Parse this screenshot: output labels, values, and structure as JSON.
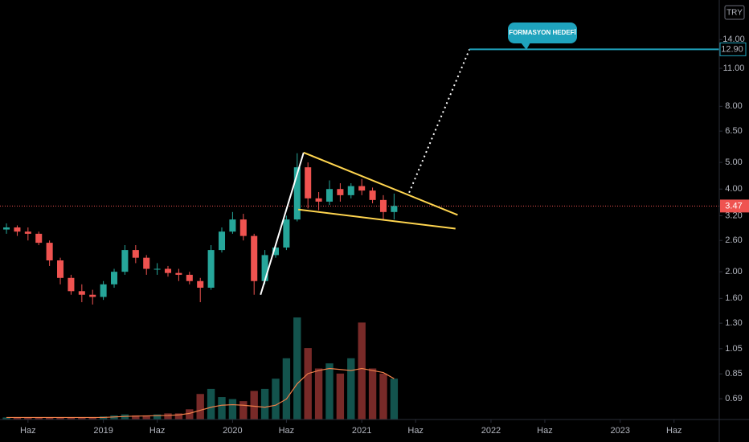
{
  "chart_data": {
    "type": "candlestick",
    "currency": "TRY",
    "categories": [
      null,
      null,
      null,
      null,
      null,
      null,
      null,
      null,
      null,
      null,
      null,
      null,
      null,
      null,
      null,
      null,
      null,
      null,
      null,
      null,
      null,
      null,
      null,
      null,
      null,
      null,
      null,
      null,
      null,
      null,
      null,
      null,
      null,
      null,
      null,
      null,
      null
    ],
    "open": [
      2.85,
      2.9,
      2.8,
      2.75,
      2.55,
      2.2,
      1.9,
      1.7,
      1.65,
      1.62,
      1.8,
      2.0,
      2.4,
      2.25,
      2.05,
      2.05,
      1.98,
      1.95,
      1.85,
      1.75,
      2.4,
      2.8,
      3.1,
      2.7,
      1.85,
      2.3,
      2.45,
      3.1,
      4.8,
      3.7,
      3.6,
      4.0,
      3.8,
      4.1,
      3.95,
      3.65,
      3.3
    ],
    "high": [
      3.0,
      2.95,
      2.9,
      2.8,
      2.6,
      2.25,
      1.95,
      1.8,
      1.72,
      1.85,
      2.05,
      2.5,
      2.5,
      2.3,
      2.15,
      2.1,
      2.05,
      2.0,
      1.9,
      2.5,
      2.9,
      3.3,
      3.25,
      2.75,
      2.4,
      2.55,
      3.2,
      5.4,
      5.0,
      3.9,
      4.3,
      4.2,
      4.2,
      4.35,
      4.05,
      3.8,
      3.85
    ],
    "low": [
      2.75,
      2.7,
      2.6,
      2.5,
      2.1,
      1.8,
      1.65,
      1.55,
      1.52,
      1.58,
      1.75,
      1.95,
      2.15,
      1.95,
      1.95,
      1.92,
      1.85,
      1.8,
      1.55,
      1.72,
      2.35,
      2.75,
      2.6,
      1.65,
      1.8,
      2.25,
      2.4,
      3.05,
      3.4,
      3.35,
      3.5,
      3.6,
      3.7,
      3.8,
      3.55,
      3.1,
      3.1
    ],
    "close": [
      2.9,
      2.8,
      2.75,
      2.55,
      2.2,
      1.9,
      1.7,
      1.65,
      1.62,
      1.8,
      2.0,
      2.4,
      2.25,
      2.05,
      2.05,
      1.98,
      1.95,
      1.85,
      1.75,
      2.4,
      2.8,
      3.1,
      2.7,
      1.85,
      2.3,
      2.45,
      3.1,
      4.8,
      3.7,
      3.6,
      4.0,
      3.8,
      4.1,
      3.95,
      3.65,
      3.3,
      3.47
    ],
    "volume": [
      2,
      2,
      2,
      2,
      2,
      2,
      2,
      2,
      2,
      3,
      4,
      5,
      4,
      4,
      5,
      6,
      6,
      10,
      25,
      30,
      22,
      20,
      18,
      28,
      30,
      40,
      60,
      100,
      70,
      50,
      55,
      45,
      60,
      95,
      50,
      45,
      40
    ],
    "volume_ma": [
      2,
      2,
      2,
      2,
      2,
      2,
      2,
      2,
      2,
      2,
      2.5,
      3,
      3.3,
      3.5,
      3.8,
      4,
      4.5,
      6,
      9,
      12,
      14,
      14.5,
      14,
      13,
      12,
      14,
      20,
      35,
      45,
      48,
      50,
      49,
      48,
      50,
      48,
      46,
      40
    ],
    "volume_lim": [
      0,
      100
    ],
    "up_color": "#26a69a",
    "down_color": "#ef5350",
    "volume_ma_color": "#f0804a",
    "log_scale": true,
    "ylim": [
      0.58,
      19.5
    ],
    "yticks": [
      0.69,
      0.85,
      1.05,
      {
        "value": 1.3,
        "label": "1.30"
      },
      {
        "value": 1.6,
        "label": "1.60"
      },
      {
        "value": 2,
        "label": "2.00"
      },
      {
        "value": 2.6,
        "label": "2.60"
      },
      {
        "value": 3.2,
        "label": "3.20"
      },
      {
        "value": 4,
        "label": "4.00"
      },
      {
        "value": 5,
        "label": "5.00"
      },
      {
        "value": 6.5,
        "label": "6.50"
      },
      {
        "value": 8,
        "label": "8.00"
      },
      {
        "value": 11,
        "label": "11.00"
      },
      {
        "value": 14,
        "label": "14.00"
      }
    ],
    "xlim": [
      -0.6,
      66.2
    ],
    "xticks": [
      {
        "value": 2,
        "label": "Haz"
      },
      {
        "value": 9,
        "label": "2019"
      },
      {
        "value": 14,
        "label": "Haz"
      },
      {
        "value": 21,
        "label": "2020"
      },
      {
        "value": 26,
        "label": "Haz"
      },
      {
        "value": 33,
        "label": "2021"
      },
      {
        "value": 38,
        "label": "Haz"
      },
      {
        "value": 45,
        "label": "2022"
      },
      {
        "value": 50,
        "label": "Haz"
      },
      {
        "value": 57,
        "label": "2023"
      },
      {
        "value": 62,
        "label": "Haz"
      }
    ],
    "last_price": 3.47,
    "last_price_color": "#ef5350",
    "target": {
      "value": 12.9,
      "label": "12.90",
      "text": "FORMASYON HEDEFİ",
      "color": "#1fa3bd"
    },
    "lines": [
      {
        "color": "#ffffff",
        "style": "solid",
        "x": [
          23.6,
          27.6
        ],
        "y": [
          1.65,
          5.43
        ]
      },
      {
        "color": "#ffd54f",
        "style": "solid",
        "x": [
          27.6,
          41.9
        ],
        "y": [
          5.43,
          3.22
        ]
      },
      {
        "color": "#ffd54f",
        "style": "solid",
        "x": [
          27.1,
          41.7
        ],
        "y": [
          3.37,
          2.87
        ]
      },
      {
        "color": "#ffffff",
        "style": "dotted",
        "x": [
          37.4,
          43.0
        ],
        "y": [
          3.88,
          12.9
        ]
      },
      {
        "color": "#1fa3bd",
        "style": "solid",
        "x": [
          43.0,
          66.2
        ],
        "y": [
          12.9,
          12.9
        ]
      }
    ]
  }
}
